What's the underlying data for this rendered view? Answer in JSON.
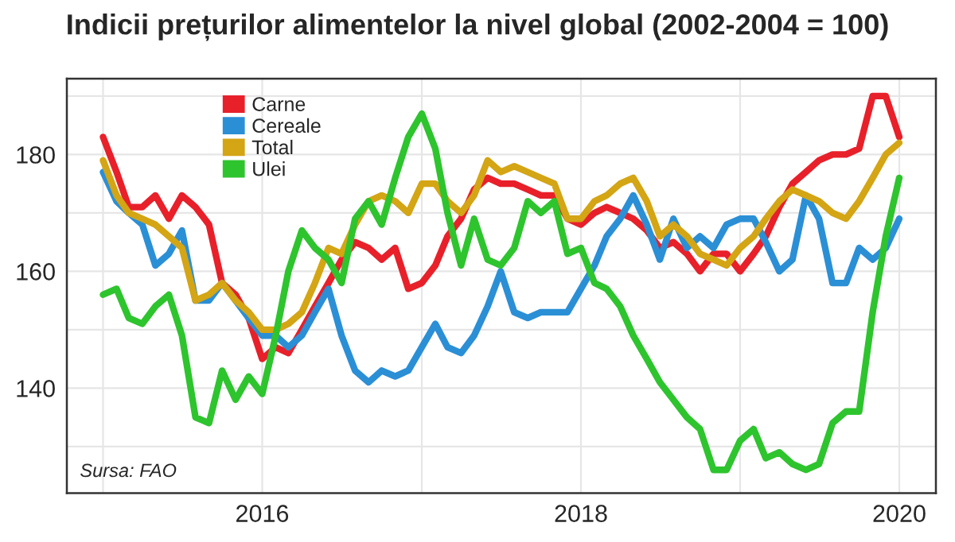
{
  "chart_data": {
    "type": "line",
    "title": "Indicii prețurilor alimentelor la nivel global (2002-2004 = 100)",
    "x": [
      "2015-01",
      "2015-02",
      "2015-03",
      "2015-04",
      "2015-05",
      "2015-06",
      "2015-07",
      "2015-08",
      "2015-09",
      "2015-10",
      "2015-11",
      "2015-12",
      "2016-01",
      "2016-02",
      "2016-03",
      "2016-04",
      "2016-05",
      "2016-06",
      "2016-07",
      "2016-08",
      "2016-09",
      "2016-10",
      "2016-11",
      "2016-12",
      "2017-01",
      "2017-02",
      "2017-03",
      "2017-04",
      "2017-05",
      "2017-06",
      "2017-07",
      "2017-08",
      "2017-09",
      "2017-10",
      "2017-11",
      "2017-12",
      "2018-01",
      "2018-02",
      "2018-03",
      "2018-04",
      "2018-05",
      "2018-06",
      "2018-07",
      "2018-08",
      "2018-09",
      "2018-10",
      "2018-11",
      "2018-12",
      "2019-01",
      "2019-02",
      "2019-03",
      "2019-04",
      "2019-05",
      "2019-06",
      "2019-07",
      "2019-08",
      "2019-09",
      "2019-10",
      "2019-11",
      "2019-12",
      "2020-01"
    ],
    "series": [
      {
        "name": "Carne",
        "color": "#e8202a",
        "values": [
          183,
          177,
          171,
          171,
          173,
          169,
          173,
          171,
          168,
          158,
          156,
          152,
          145,
          147,
          146,
          150,
          154,
          158,
          162,
          165,
          164,
          162,
          164,
          157,
          158,
          161,
          166,
          169,
          174,
          176,
          175,
          175,
          174,
          173,
          173,
          169,
          168,
          170,
          171,
          170,
          169,
          167,
          164,
          165,
          163,
          160,
          163,
          163,
          160,
          163,
          166,
          171,
          175,
          177,
          179,
          180,
          180,
          181,
          190,
          190,
          183
        ]
      },
      {
        "name": "Cereale",
        "color": "#2b8fd6",
        "values": [
          177,
          172,
          170,
          168,
          161,
          163,
          167,
          155,
          155,
          158,
          155,
          152,
          149,
          149,
          147,
          149,
          153,
          157,
          149,
          143,
          141,
          143,
          142,
          143,
          147,
          151,
          147,
          146,
          149,
          154,
          160,
          153,
          152,
          153,
          153,
          153,
          157,
          161,
          166,
          169,
          173,
          168,
          162,
          169,
          164,
          166,
          164,
          168,
          169,
          169,
          165,
          160,
          162,
          173,
          169,
          158,
          158,
          164,
          162,
          164,
          169
        ]
      },
      {
        "name": "Total",
        "color": "#d4a514",
        "values": [
          179,
          173,
          170,
          169,
          168,
          166,
          164,
          155,
          156,
          158,
          155,
          153,
          150,
          150,
          151,
          153,
          158,
          164,
          163,
          168,
          172,
          173,
          172,
          170,
          175,
          175,
          172,
          170,
          173,
          179,
          177,
          178,
          177,
          176,
          175,
          169,
          169,
          172,
          173,
          175,
          176,
          172,
          166,
          168,
          166,
          163,
          162,
          161,
          164,
          166,
          169,
          172,
          174,
          173,
          172,
          170,
          169,
          172,
          176,
          180,
          182
        ]
      },
      {
        "name": "Ulei",
        "color": "#2ec42e",
        "values": [
          156,
          157,
          152,
          151,
          154,
          156,
          149,
          135,
          134,
          143,
          138,
          142,
          139,
          149,
          160,
          167,
          164,
          162,
          158,
          169,
          172,
          168,
          176,
          183,
          187,
          181,
          170,
          161,
          169,
          162,
          161,
          164,
          172,
          170,
          172,
          163,
          164,
          158,
          157,
          154,
          149,
          145,
          141,
          138,
          135,
          133,
          126,
          126,
          131,
          133,
          128,
          129,
          127,
          126,
          127,
          134,
          136,
          136,
          153,
          166,
          176
        ]
      }
    ],
    "xlim": [
      "2014-10-10",
      "2020-03-25"
    ],
    "xticks": [
      {
        "value": "2015",
        "label": null
      },
      "2016",
      {
        "value": "2017",
        "label": null
      },
      "2018",
      {
        "value": "2019",
        "label": null
      },
      "2020"
    ],
    "ylim": [
      122,
      193
    ],
    "yticks": [
      {
        "value": 130,
        "label": null
      },
      140,
      {
        "value": 150,
        "label": null
      },
      160,
      {
        "value": 170,
        "label": null
      },
      180,
      {
        "value": 190,
        "label": null
      }
    ],
    "grid": true,
    "legend": "top left",
    "annotations": [
      "Sursa: FAO"
    ]
  }
}
